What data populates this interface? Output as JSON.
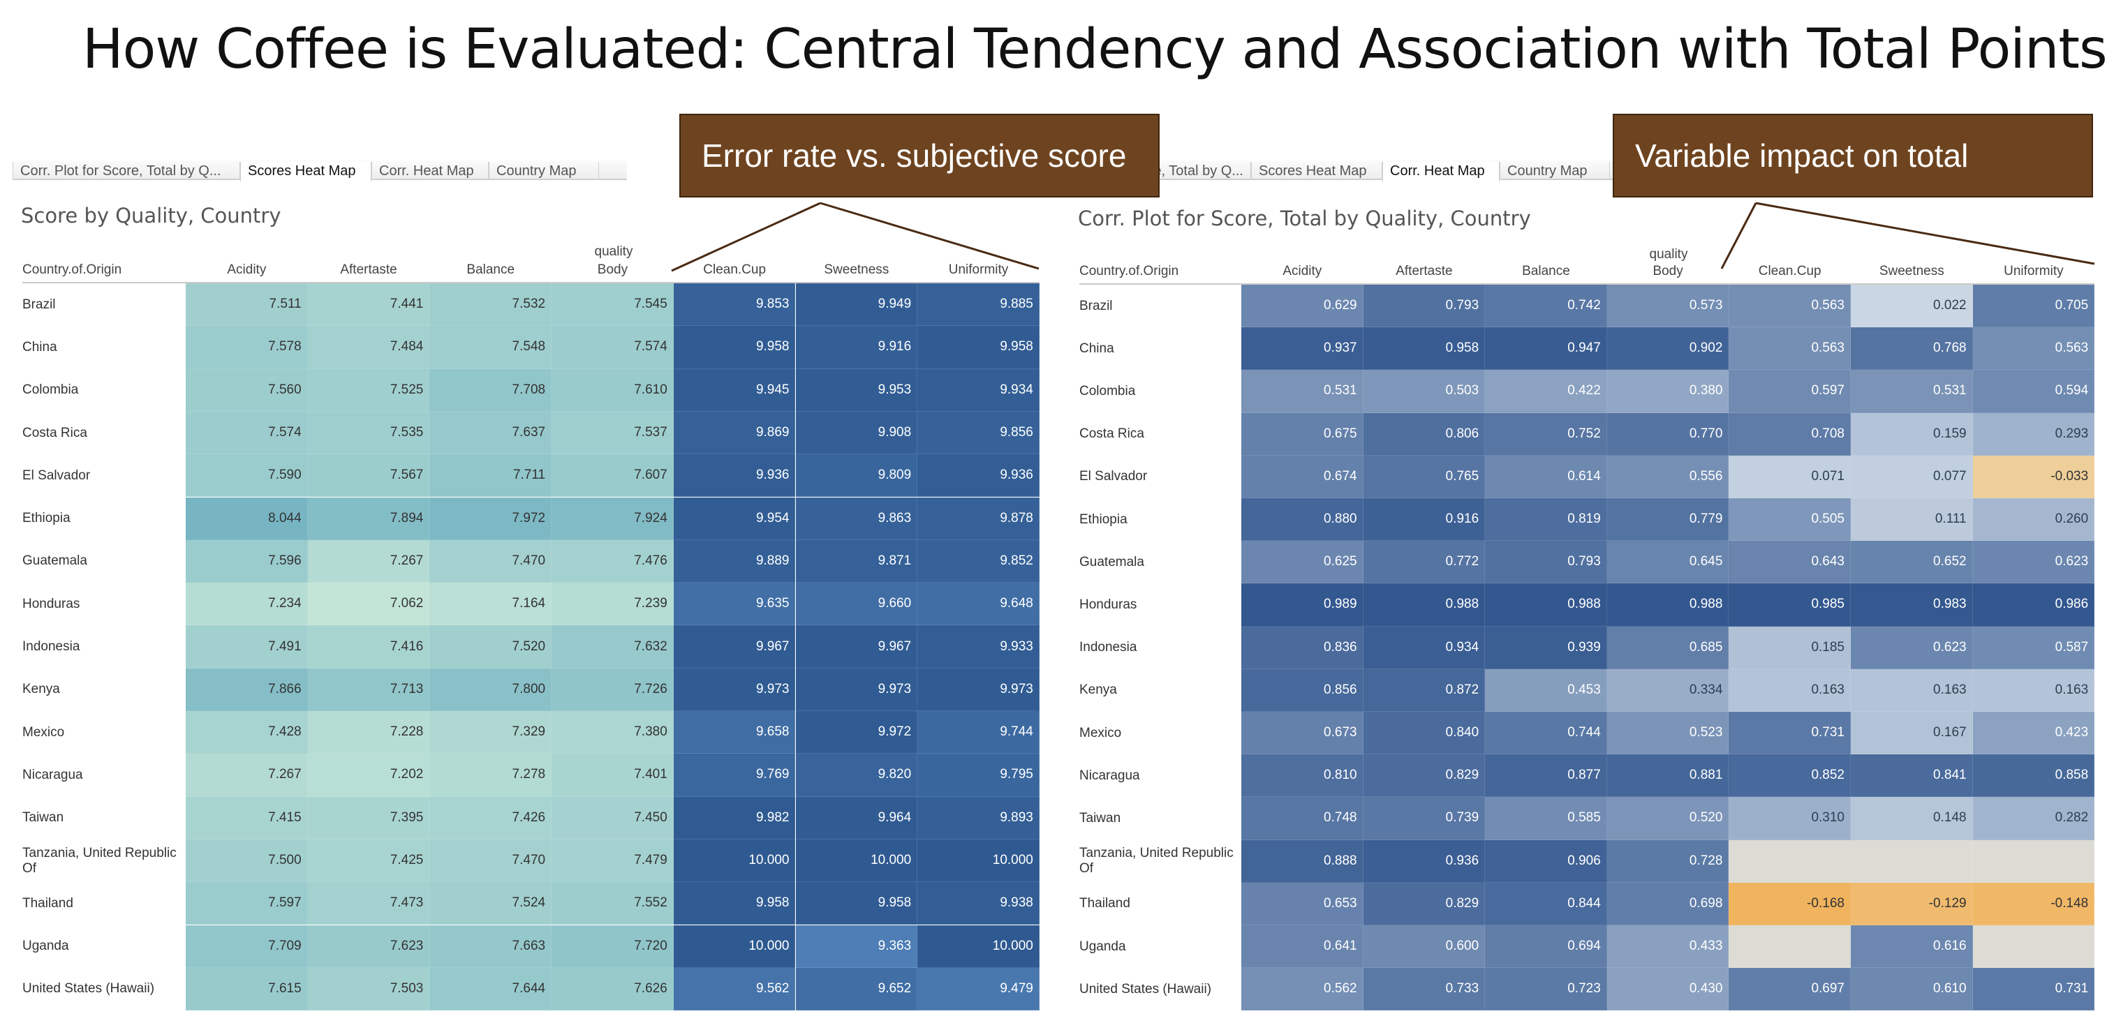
{
  "title": "How Coffee is Evaluated: Central Tendency and Association with Total Points",
  "left_panel": {
    "tabs": [
      "Corr. Plot for Score, Total by Q...",
      "Scores Heat Map",
      "Corr. Heat Map",
      "Country Map"
    ],
    "active_tab": 1,
    "sheet_title": "Score by Quality, Country",
    "top_label": "quality"
  },
  "right_panel": {
    "tabs": [
      "Corr. Plot for Score, Total by Q...",
      "Scores Heat Map",
      "Corr. Heat Map",
      "Country Map"
    ],
    "active_tab": 2,
    "sheet_title": "Corr. Plot for Score, Total by Quality, Country",
    "top_label": "quality"
  },
  "callouts": {
    "left": "Error rate vs. subjective score",
    "right": "Variable impact on total"
  },
  "colors": {
    "callout_fill": "#6e4420",
    "teal_low": "#c4e6d8",
    "teal_high": "#77b5c3",
    "blue_low": "#4f7fb6",
    "blue_high": "#2f5a91",
    "corr_low": "#cdd9e6",
    "corr_high": "#31568e",
    "corr_negative": "#f0b35d",
    "null_cell": "#dcdbd4"
  },
  "chart_data": [
    {
      "type": "heatmap",
      "title": "Score by Quality, Country",
      "row_header": "Country.of.Origin",
      "column_group_label": "quality",
      "columns": [
        "Acidity",
        "Aftertaste",
        "Balance",
        "Body",
        "Clean.Cup",
        "Sweetness",
        "Uniformity"
      ],
      "rows": [
        "Brazil",
        "China",
        "Colombia",
        "Costa Rica",
        "El Salvador",
        "Ethiopia",
        "Guatemala",
        "Honduras",
        "Indonesia",
        "Kenya",
        "Mexico",
        "Nicaragua",
        "Taiwan",
        "Tanzania, United Republic Of",
        "Thailand",
        "Uganda",
        "United States (Hawaii)"
      ],
      "values": [
        [
          "7.511",
          "7.441",
          "7.532",
          "7.545",
          "9.853",
          "9.949",
          "9.885"
        ],
        [
          "7.578",
          "7.484",
          "7.548",
          "7.574",
          "9.958",
          "9.916",
          "9.958"
        ],
        [
          "7.560",
          "7.525",
          "7.708",
          "7.610",
          "9.945",
          "9.953",
          "9.934"
        ],
        [
          "7.574",
          "7.535",
          "7.637",
          "7.537",
          "9.869",
          "9.908",
          "9.856"
        ],
        [
          "7.590",
          "7.567",
          "7.711",
          "7.607",
          "9.936",
          "9.809",
          "9.936"
        ],
        [
          "8.044",
          "7.894",
          "7.972",
          "7.924",
          "9.954",
          "9.863",
          "9.878"
        ],
        [
          "7.596",
          "7.267",
          "7.470",
          "7.476",
          "9.889",
          "9.871",
          "9.852"
        ],
        [
          "7.234",
          "7.062",
          "7.164",
          "7.239",
          "9.635",
          "9.660",
          "9.648"
        ],
        [
          "7.491",
          "7.416",
          "7.520",
          "7.632",
          "9.967",
          "9.967",
          "9.933"
        ],
        [
          "7.866",
          "7.713",
          "7.800",
          "7.726",
          "9.973",
          "9.973",
          "9.973"
        ],
        [
          "7.428",
          "7.228",
          "7.329",
          "7.380",
          "9.658",
          "9.972",
          "9.744"
        ],
        [
          "7.267",
          "7.202",
          "7.278",
          "7.401",
          "9.769",
          "9.820",
          "9.795"
        ],
        [
          "7.415",
          "7.395",
          "7.426",
          "7.450",
          "9.982",
          "9.964",
          "9.893"
        ],
        [
          "7.500",
          "7.425",
          "7.470",
          "7.479",
          "10.000",
          "10.000",
          "10.000"
        ],
        [
          "7.597",
          "7.473",
          "7.524",
          "7.552",
          "9.958",
          "9.958",
          "9.938"
        ],
        [
          "7.709",
          "7.623",
          "7.663",
          "7.720",
          "10.000",
          "9.363",
          "10.000"
        ],
        [
          "7.615",
          "7.503",
          "7.644",
          "7.626",
          "9.562",
          "9.652",
          "9.479"
        ]
      ]
    },
    {
      "type": "heatmap",
      "title": "Corr. Plot for Score, Total by Quality, Country",
      "row_header": "Country.of.Origin",
      "column_group_label": "quality",
      "columns": [
        "Acidity",
        "Aftertaste",
        "Balance",
        "Body",
        "Clean.Cup",
        "Sweetness",
        "Uniformity"
      ],
      "rows": [
        "Brazil",
        "China",
        "Colombia",
        "Costa Rica",
        "El Salvador",
        "Ethiopia",
        "Guatemala",
        "Honduras",
        "Indonesia",
        "Kenya",
        "Mexico",
        "Nicaragua",
        "Taiwan",
        "Tanzania, United Republic Of",
        "Thailand",
        "Uganda",
        "United States (Hawaii)"
      ],
      "values": [
        [
          "0.629",
          "0.793",
          "0.742",
          "0.573",
          "0.563",
          "0.022",
          "0.705"
        ],
        [
          "0.937",
          "0.958",
          "0.947",
          "0.902",
          "0.563",
          "0.768",
          "0.563"
        ],
        [
          "0.531",
          "0.503",
          "0.422",
          "0.380",
          "0.597",
          "0.531",
          "0.594"
        ],
        [
          "0.675",
          "0.806",
          "0.752",
          "0.770",
          "0.708",
          "0.159",
          "0.293"
        ],
        [
          "0.674",
          "0.765",
          "0.614",
          "0.556",
          "0.071",
          "0.077",
          "-0.033"
        ],
        [
          "0.880",
          "0.916",
          "0.819",
          "0.779",
          "0.505",
          "0.111",
          "0.260"
        ],
        [
          "0.625",
          "0.772",
          "0.793",
          "0.645",
          "0.643",
          "0.652",
          "0.623"
        ],
        [
          "0.989",
          "0.988",
          "0.988",
          "0.988",
          "0.985",
          "0.983",
          "0.986"
        ],
        [
          "0.836",
          "0.934",
          "0.939",
          "0.685",
          "0.185",
          "0.623",
          "0.587"
        ],
        [
          "0.856",
          "0.872",
          "0.453",
          "0.334",
          "0.163",
          "0.163",
          "0.163"
        ],
        [
          "0.673",
          "0.840",
          "0.744",
          "0.523",
          "0.731",
          "0.167",
          "0.423"
        ],
        [
          "0.810",
          "0.829",
          "0.877",
          "0.881",
          "0.852",
          "0.841",
          "0.858"
        ],
        [
          "0.748",
          "0.739",
          "0.585",
          "0.520",
          "0.310",
          "0.148",
          "0.282"
        ],
        [
          "0.888",
          "0.936",
          "0.906",
          "0.728",
          "",
          "",
          ""
        ],
        [
          "0.653",
          "0.829",
          "0.844",
          "0.698",
          "-0.168",
          "-0.129",
          "-0.148"
        ],
        [
          "0.641",
          "0.600",
          "0.694",
          "0.433",
          "",
          "0.616",
          ""
        ],
        [
          "0.562",
          "0.733",
          "0.723",
          "0.430",
          "0.697",
          "0.610",
          "0.731"
        ]
      ]
    }
  ]
}
